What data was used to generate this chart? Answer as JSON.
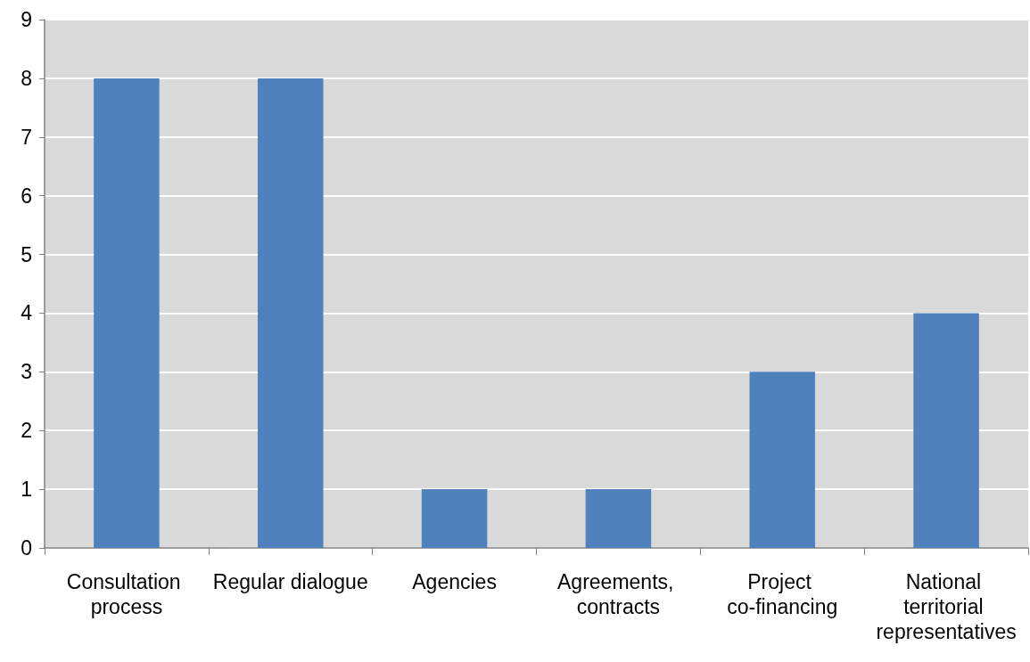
{
  "chart_data": {
    "type": "bar",
    "categories": [
      "Consultation process",
      "Regular dialogue",
      "Agencies",
      "Agreements, contracts",
      "Project co-financing",
      "National territorial representatives"
    ],
    "values": [
      8,
      8,
      1,
      1,
      3,
      4
    ],
    "color": "#4f81bd",
    "ylim": [
      0,
      9
    ],
    "yticks": [
      0,
      1,
      2,
      3,
      4,
      5,
      6,
      7,
      8,
      9
    ],
    "grid": "y"
  }
}
